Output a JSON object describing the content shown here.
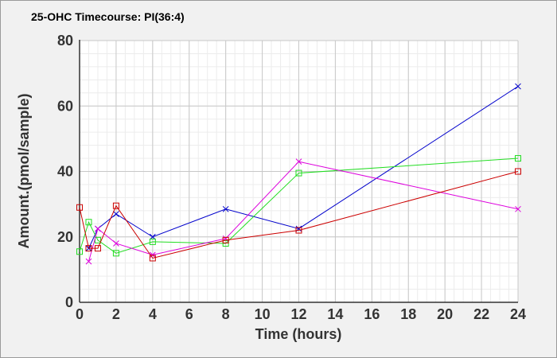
{
  "chart_data": {
    "type": "line",
    "title": "25-OHC Timecourse: PI(36:4)",
    "xlabel": "Time (hours)",
    "ylabel": "Amount.(pmol/sample)",
    "xlim": [
      0,
      24
    ],
    "ylim": [
      0,
      80
    ],
    "x_ticks": [
      0,
      2,
      4,
      6,
      8,
      10,
      12,
      14,
      16,
      18,
      20,
      22,
      24
    ],
    "y_ticks": [
      0,
      20,
      40,
      60,
      80
    ],
    "grid": true,
    "legend": "none",
    "series": [
      {
        "color": "#0000cc",
        "marker": "x",
        "points": [
          [
            0.5,
            16.5
          ],
          [
            1,
            22.5
          ],
          [
            2,
            27
          ],
          [
            4,
            20
          ],
          [
            8,
            28.5
          ],
          [
            12,
            22.5
          ],
          [
            24,
            66
          ]
        ]
      },
      {
        "color": "#22dd22",
        "marker": "square",
        "points": [
          [
            0,
            15.5
          ],
          [
            0.5,
            24.5
          ],
          [
            1,
            19
          ],
          [
            2,
            15
          ],
          [
            4,
            18.5
          ],
          [
            8,
            18
          ],
          [
            12,
            39.5
          ],
          [
            24,
            44
          ]
        ]
      },
      {
        "color": "#dd00dd",
        "marker": "x",
        "points": [
          [
            0.5,
            12.5
          ],
          [
            1,
            22.5
          ],
          [
            2,
            18
          ],
          [
            4,
            14.5
          ],
          [
            8,
            19.5
          ],
          [
            12,
            43
          ],
          [
            24,
            28.5
          ]
        ]
      },
      {
        "color": "#cc0000",
        "marker": "square",
        "points": [
          [
            0,
            29
          ],
          [
            0.5,
            16.5
          ],
          [
            1,
            16.5
          ],
          [
            2,
            29.5
          ],
          [
            4,
            13.5
          ],
          [
            8,
            19
          ],
          [
            12,
            22
          ],
          [
            24,
            40
          ]
        ]
      }
    ]
  }
}
